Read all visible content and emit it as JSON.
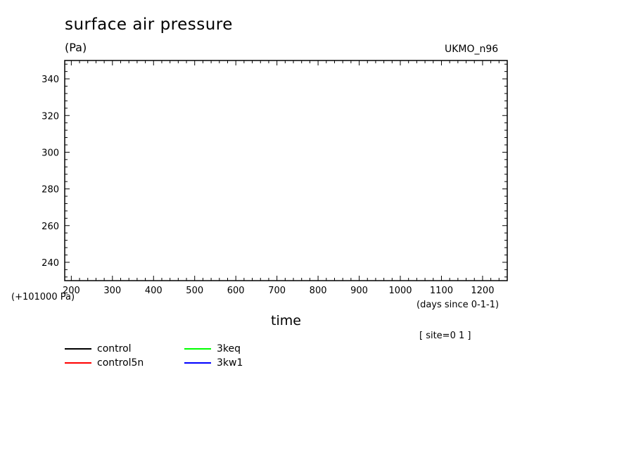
{
  "chart_data": {
    "type": "line",
    "title": "surface air pressure",
    "ylabel_units": "(Pa)",
    "model_label": "UKMO_n96",
    "y_offset_label": "(+101000 Pa)",
    "xlabel": "time",
    "x_units": "(days since 0-1-1)",
    "site_label": "[ site=0 1 ]",
    "xlim": [
      184,
      1260
    ],
    "ylim": [
      230,
      350
    ],
    "x_ticks": [
      200,
      300,
      400,
      500,
      600,
      700,
      800,
      900,
      1000,
      1100,
      1200
    ],
    "y_ticks": [
      240,
      260,
      280,
      300,
      320,
      340
    ],
    "series": [
      {
        "name": "control",
        "color": "#000000",
        "values": []
      },
      {
        "name": "control5n",
        "color": "#ff0000",
        "values": []
      },
      {
        "name": "3keq",
        "color": "#00ff00",
        "values": []
      },
      {
        "name": "3kw1",
        "color": "#0000ff",
        "values": []
      }
    ]
  }
}
